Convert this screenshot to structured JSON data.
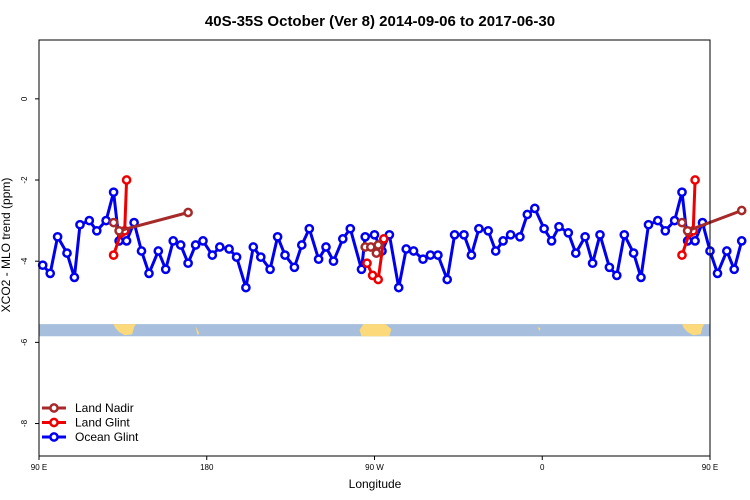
{
  "chart_data": {
    "type": "line",
    "title": "40S-35S October (Ver 8)   2014-09-06 to 2017-06-30",
    "xlabel": "Longitude",
    "ylabel": "XCO2 - MLO trend (ppm)",
    "x_axis_range": [
      90,
      450
    ],
    "xticks": [
      {
        "value": 90,
        "label": "90 E"
      },
      {
        "value": 180,
        "label": "180"
      },
      {
        "value": 270,
        "label": "90 W"
      },
      {
        "value": 360,
        "label": "0"
      },
      {
        "value": 450,
        "label": "90 E"
      },
      {
        "value": 540,
        "label": "180"
      }
    ],
    "ylim": [
      -8.8,
      1.45
    ],
    "yticks": [
      {
        "value": 0,
        "label": "0"
      },
      {
        "value": -2,
        "label": "-2"
      },
      {
        "value": -4,
        "label": "-4"
      },
      {
        "value": -6,
        "label": "-6"
      },
      {
        "value": -8,
        "label": "-8"
      }
    ],
    "map_strip": {
      "y_top": -5.55,
      "y_bottom": -5.85,
      "ocean_color": "#a7bfdd",
      "land_color": "#fcd97a"
    },
    "legend_position": "bottom-left",
    "series": [
      {
        "name": "Ocean Glint",
        "color": "#0000ee",
        "points": [
          [
            92,
            -4.1
          ],
          [
            96,
            -4.3
          ],
          [
            100,
            -3.4
          ],
          [
            105,
            -3.8
          ],
          [
            109,
            -4.4
          ],
          [
            112,
            -3.1
          ],
          [
            117,
            -3.0
          ],
          [
            121,
            -3.25
          ],
          [
            126,
            -3.0
          ],
          [
            130,
            -2.3
          ],
          [
            133,
            -3.5
          ],
          [
            137,
            -3.5
          ],
          [
            141,
            -3.05
          ],
          [
            145,
            -3.75
          ],
          [
            149,
            -4.3
          ],
          [
            154,
            -3.75
          ],
          [
            158,
            -4.2
          ],
          [
            162,
            -3.5
          ],
          [
            166,
            -3.6
          ],
          [
            170,
            -4.05
          ],
          [
            174,
            -3.6
          ],
          [
            178,
            -3.5
          ],
          [
            183,
            -3.85
          ],
          [
            187,
            -3.65
          ],
          [
            192,
            -3.7
          ],
          [
            196,
            -3.9
          ],
          [
            201,
            -4.65
          ],
          [
            205,
            -3.65
          ],
          [
            209,
            -3.9
          ],
          [
            214,
            -4.2
          ],
          [
            218,
            -3.4
          ],
          [
            222,
            -3.85
          ],
          [
            227,
            -4.15
          ],
          [
            231,
            -3.6
          ],
          [
            235,
            -3.2
          ],
          [
            240,
            -3.95
          ],
          [
            244,
            -3.65
          ],
          [
            248,
            -4.0
          ],
          [
            253,
            -3.45
          ],
          [
            257,
            -3.2
          ],
          [
            263,
            -4.2
          ],
          [
            265,
            -3.4
          ],
          [
            270,
            -3.35
          ],
          [
            274,
            -3.75
          ],
          [
            278,
            -3.35
          ],
          [
            283,
            -4.65
          ],
          [
            287,
            -3.7
          ],
          [
            291,
            -3.75
          ],
          [
            296,
            -3.95
          ],
          [
            300,
            -3.85
          ],
          [
            304,
            -3.85
          ],
          [
            309,
            -4.45
          ],
          [
            313,
            -3.35
          ],
          [
            318,
            -3.35
          ],
          [
            322,
            -3.85
          ],
          [
            326,
            -3.2
          ],
          [
            331,
            -3.25
          ],
          [
            335,
            -3.75
          ],
          [
            339,
            -3.5
          ],
          [
            343,
            -3.35
          ],
          [
            348,
            -3.4
          ],
          [
            352,
            -2.85
          ],
          [
            356,
            -2.7
          ],
          [
            361,
            -3.2
          ],
          [
            365,
            -3.5
          ],
          [
            369,
            -3.15
          ],
          [
            374,
            -3.3
          ],
          [
            378,
            -3.8
          ],
          [
            383,
            -3.4
          ],
          [
            387,
            -4.05
          ],
          [
            391,
            -3.35
          ],
          [
            396,
            -4.15
          ],
          [
            400,
            -4.35
          ],
          [
            404,
            -3.35
          ],
          [
            409,
            -3.8
          ],
          [
            413,
            -4.4
          ],
          [
            417,
            -3.1
          ],
          [
            422,
            -3.0
          ],
          [
            426,
            -3.25
          ],
          [
            431,
            -3.0
          ],
          [
            435,
            -2.3
          ],
          [
            438,
            -3.5
          ],
          [
            442,
            -3.5
          ],
          [
            446,
            -3.05
          ],
          [
            450,
            -3.75
          ],
          [
            454,
            -4.3
          ],
          [
            459,
            -3.75
          ],
          [
            463,
            -4.2
          ],
          [
            467,
            -3.5
          ]
        ]
      },
      {
        "name": "Land Glint",
        "color": "#ee0000",
        "segments": [
          [
            [
              130,
              -3.85
            ],
            [
              134,
              -3.3
            ],
            [
              136,
              -3.25
            ],
            [
              137,
              -2.0
            ]
          ],
          [
            [
              266,
              -4.05
            ],
            [
              269,
              -4.35
            ],
            [
              272,
              -4.45
            ],
            [
              275,
              -3.45
            ]
          ],
          [
            [
              435,
              -3.85
            ],
            [
              439,
              -3.3
            ],
            [
              441,
              -3.25
            ],
            [
              442,
              -2.0
            ]
          ]
        ]
      },
      {
        "name": "Land Nadir",
        "color": "#a52a2a",
        "segments": [
          [
            [
              130,
              -3.05
            ],
            [
              133,
              -3.25
            ],
            [
              170,
              -2.8
            ]
          ],
          [
            [
              265,
              -3.65
            ],
            [
              268,
              -3.65
            ],
            [
              271,
              -3.8
            ],
            [
              272,
              -3.6
            ]
          ],
          [
            [
              435,
              -3.05
            ],
            [
              438,
              -3.25
            ],
            [
              467,
              -2.75
            ]
          ]
        ]
      }
    ]
  }
}
